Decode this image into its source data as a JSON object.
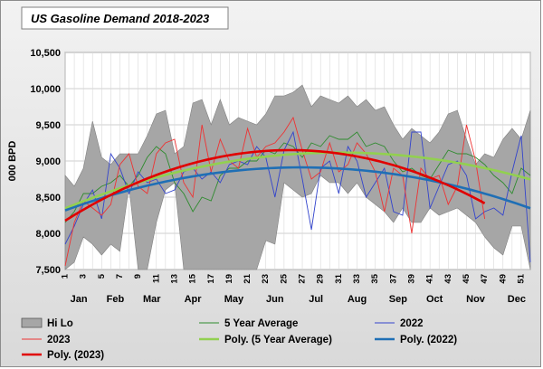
{
  "chart_data": {
    "type": "line",
    "title": "US Gasoline Demand 2018-2023",
    "ylabel": "000 BPD",
    "ylim": [
      7500,
      10500
    ],
    "yticks": [
      7500,
      8000,
      8500,
      9000,
      9500,
      10000,
      10500
    ],
    "ytick_labels": [
      "7,500",
      "8,000",
      "8,500",
      "9,000",
      "9,500",
      "10,000",
      "10,500"
    ],
    "weeks": 52,
    "xticks": [
      1,
      3,
      5,
      7,
      9,
      11,
      13,
      15,
      17,
      19,
      21,
      23,
      25,
      27,
      29,
      31,
      33,
      35,
      37,
      39,
      41,
      43,
      45,
      47,
      49,
      51
    ],
    "months": [
      "Jan",
      "Feb",
      "Mar",
      "Apr",
      "May",
      "Jun",
      "Jul",
      "Aug",
      "Sep",
      "Oct",
      "Nov",
      "Dec"
    ],
    "month_centers": [
      2.5,
      6.5,
      10.5,
      15,
      19.5,
      24,
      28.5,
      33,
      37.5,
      41.5,
      46,
      50.5
    ],
    "grid": true,
    "legend_position": "bottom",
    "colors": {
      "hilo_fill": "#a6a6a6",
      "avg5": "#2e8b2e",
      "y2022": "#3344cc",
      "y2023": "#ee3333",
      "poly_avg5": "#92d050",
      "poly_2022": "#1f6fb5",
      "poly_2023": "#e00000"
    },
    "hi": [
      8800,
      8650,
      8900,
      9550,
      9050,
      8950,
      9100,
      9100,
      9100,
      9350,
      9650,
      9700,
      9100,
      9200,
      9800,
      9850,
      9500,
      9850,
      9500,
      9600,
      9550,
      9500,
      9650,
      9900,
      9900,
      9950,
      10050,
      9750,
      9900,
      9850,
      9800,
      9900,
      9750,
      9850,
      9700,
      9750,
      9500,
      9300,
      9450,
      9350,
      9250,
      9400,
      9650,
      9700,
      9300,
      8950,
      9100,
      9050,
      9300,
      9450,
      9300,
      9700
    ],
    "lo": [
      7500,
      7600,
      7950,
      7850,
      7700,
      7850,
      7750,
      8650,
      7400,
      7400,
      8150,
      8600,
      8700,
      7500,
      7500,
      7500,
      7500,
      7500,
      7500,
      7500,
      7500,
      7500,
      7900,
      7850,
      8700,
      8600,
      8500,
      8550,
      8800,
      8700,
      8700,
      8550,
      8700,
      8500,
      8400,
      8300,
      8150,
      8350,
      8150,
      8150,
      8350,
      8250,
      8300,
      8350,
      8250,
      8150,
      7950,
      7800,
      7700,
      8100,
      8100,
      7500
    ],
    "series": [
      {
        "name": "5 Year Average",
        "values": [
          8150,
          8300,
          8550,
          8550,
          8650,
          8700,
          8800,
          8650,
          8800,
          9050,
          9200,
          9100,
          8700,
          8550,
          8300,
          8500,
          8450,
          8800,
          8900,
          8900,
          9000,
          9000,
          9150,
          9100,
          9250,
          9200,
          9050,
          9250,
          9200,
          9350,
          9300,
          9300,
          9400,
          9200,
          9250,
          9200,
          9000,
          8850,
          8900,
          8800,
          8750,
          8950,
          9150,
          9100,
          9100,
          9050,
          8950,
          8800,
          8700,
          8550,
          8900,
          8800
        ]
      },
      {
        "name": "2022",
        "values": [
          7850,
          8100,
          8400,
          8600,
          8200,
          9100,
          8900,
          8550,
          8850,
          8700,
          8750,
          8550,
          8600,
          8850,
          8900,
          8750,
          8850,
          8700,
          8950,
          9000,
          8950,
          9200,
          9050,
          8500,
          9150,
          9400,
          8750,
          8050,
          8900,
          9000,
          8550,
          9200,
          9000,
          8500,
          8700,
          8900,
          8300,
          8250,
          9400,
          9400,
          8350,
          8650,
          8950,
          9000,
          8800,
          8200,
          8300,
          8350,
          8250,
          8850,
          9350,
          7600
        ]
      },
      {
        "name": "2023",
        "values": [
          7550,
          8150,
          8450,
          8350,
          8250,
          8400,
          8950,
          9100,
          8650,
          8550,
          9100,
          9250,
          9300,
          8700,
          8500,
          9500,
          8850,
          9300,
          9000,
          8900,
          9450,
          9050,
          9200,
          9250,
          9400,
          9600,
          9150,
          8750,
          8850,
          9250,
          8850,
          8950,
          9250,
          9100,
          8850,
          8300,
          8900,
          8800,
          8000,
          8900,
          8750,
          8800,
          8400,
          8650,
          9500,
          9000,
          8200
        ]
      }
    ],
    "trendlines": [
      {
        "name": "Poly. (5 Year Average)",
        "of": "5 Year Average"
      },
      {
        "name": "Poly. (2022)",
        "of": "2022"
      },
      {
        "name": "Poly. (2023)",
        "of": "2023"
      }
    ],
    "legend": [
      "Hi Lo",
      "5 Year Average",
      "2022",
      "2023",
      "Poly. (5 Year Average)",
      "Poly. (2022)",
      "Poly. (2023)"
    ]
  }
}
